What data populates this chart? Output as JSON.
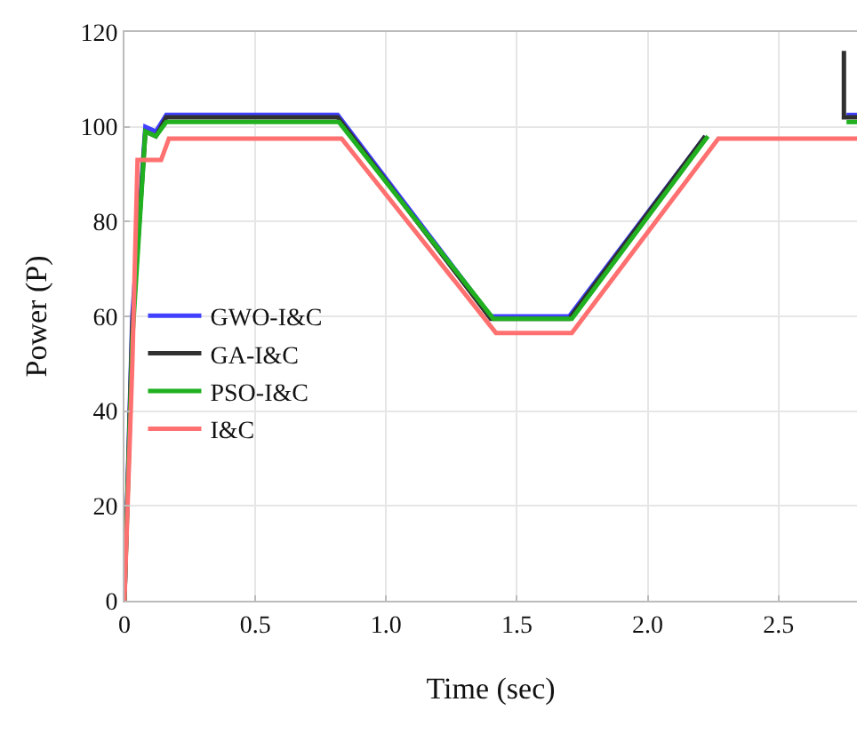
{
  "chart_data": {
    "type": "line",
    "xlabel": "Time (sec)",
    "ylabel": "Power (P)",
    "xlim": [
      0,
      2.8
    ],
    "xticks": [
      0,
      0.5,
      {
        "value": 1,
        "label": "1.0"
      },
      1.5,
      {
        "value": 2,
        "label": "2.0"
      },
      2.5
    ],
    "ylim": [
      0,
      120
    ],
    "yticks": [
      0,
      20,
      40,
      60,
      80,
      100,
      120
    ],
    "grid": true,
    "legend": "left",
    "line_style": "solid",
    "marker": "none",
    "series": [
      {
        "name": "GWO-I&C",
        "color": "#4040ff",
        "x": [
          0,
          0.03,
          0.08,
          0.12,
          0.16,
          0.815,
          1.4,
          1.7,
          2.22,
          2.25,
          2.76,
          2.8
        ],
        "values": [
          0,
          60,
          100,
          99,
          102.5,
          102.5,
          60,
          60,
          98,
          null,
          102.5,
          102.5
        ]
      },
      {
        "name": "GA-I&C",
        "color": "#303030",
        "x": [
          0,
          0.03,
          0.08,
          0.12,
          0.16,
          0.815,
          1.4,
          1.7,
          2.22,
          2.25,
          2.75,
          2.75,
          2.76,
          2.8
        ],
        "values": [
          0,
          58,
          99,
          98,
          102,
          102,
          59.5,
          59.5,
          98,
          null,
          116,
          102,
          102,
          102
        ]
      },
      {
        "name": "PSO-I&C",
        "color": "#20b020",
        "x": [
          0,
          0.03,
          0.08,
          0.12,
          0.16,
          0.82,
          1.41,
          1.71,
          2.23,
          2.26,
          2.76,
          2.8
        ],
        "values": [
          0,
          55,
          99,
          98,
          101,
          101,
          59.5,
          59.5,
          98,
          null,
          101,
          101
        ]
      },
      {
        "name": "I&C",
        "color": "#ff7070",
        "x": [
          0,
          0.03,
          0.05,
          0.14,
          0.17,
          0.83,
          1.42,
          1.71,
          2.27,
          2.8
        ],
        "values": [
          0,
          50,
          93,
          93,
          97.5,
          97.5,
          56.5,
          56.5,
          97.5,
          97.5
        ]
      }
    ]
  }
}
